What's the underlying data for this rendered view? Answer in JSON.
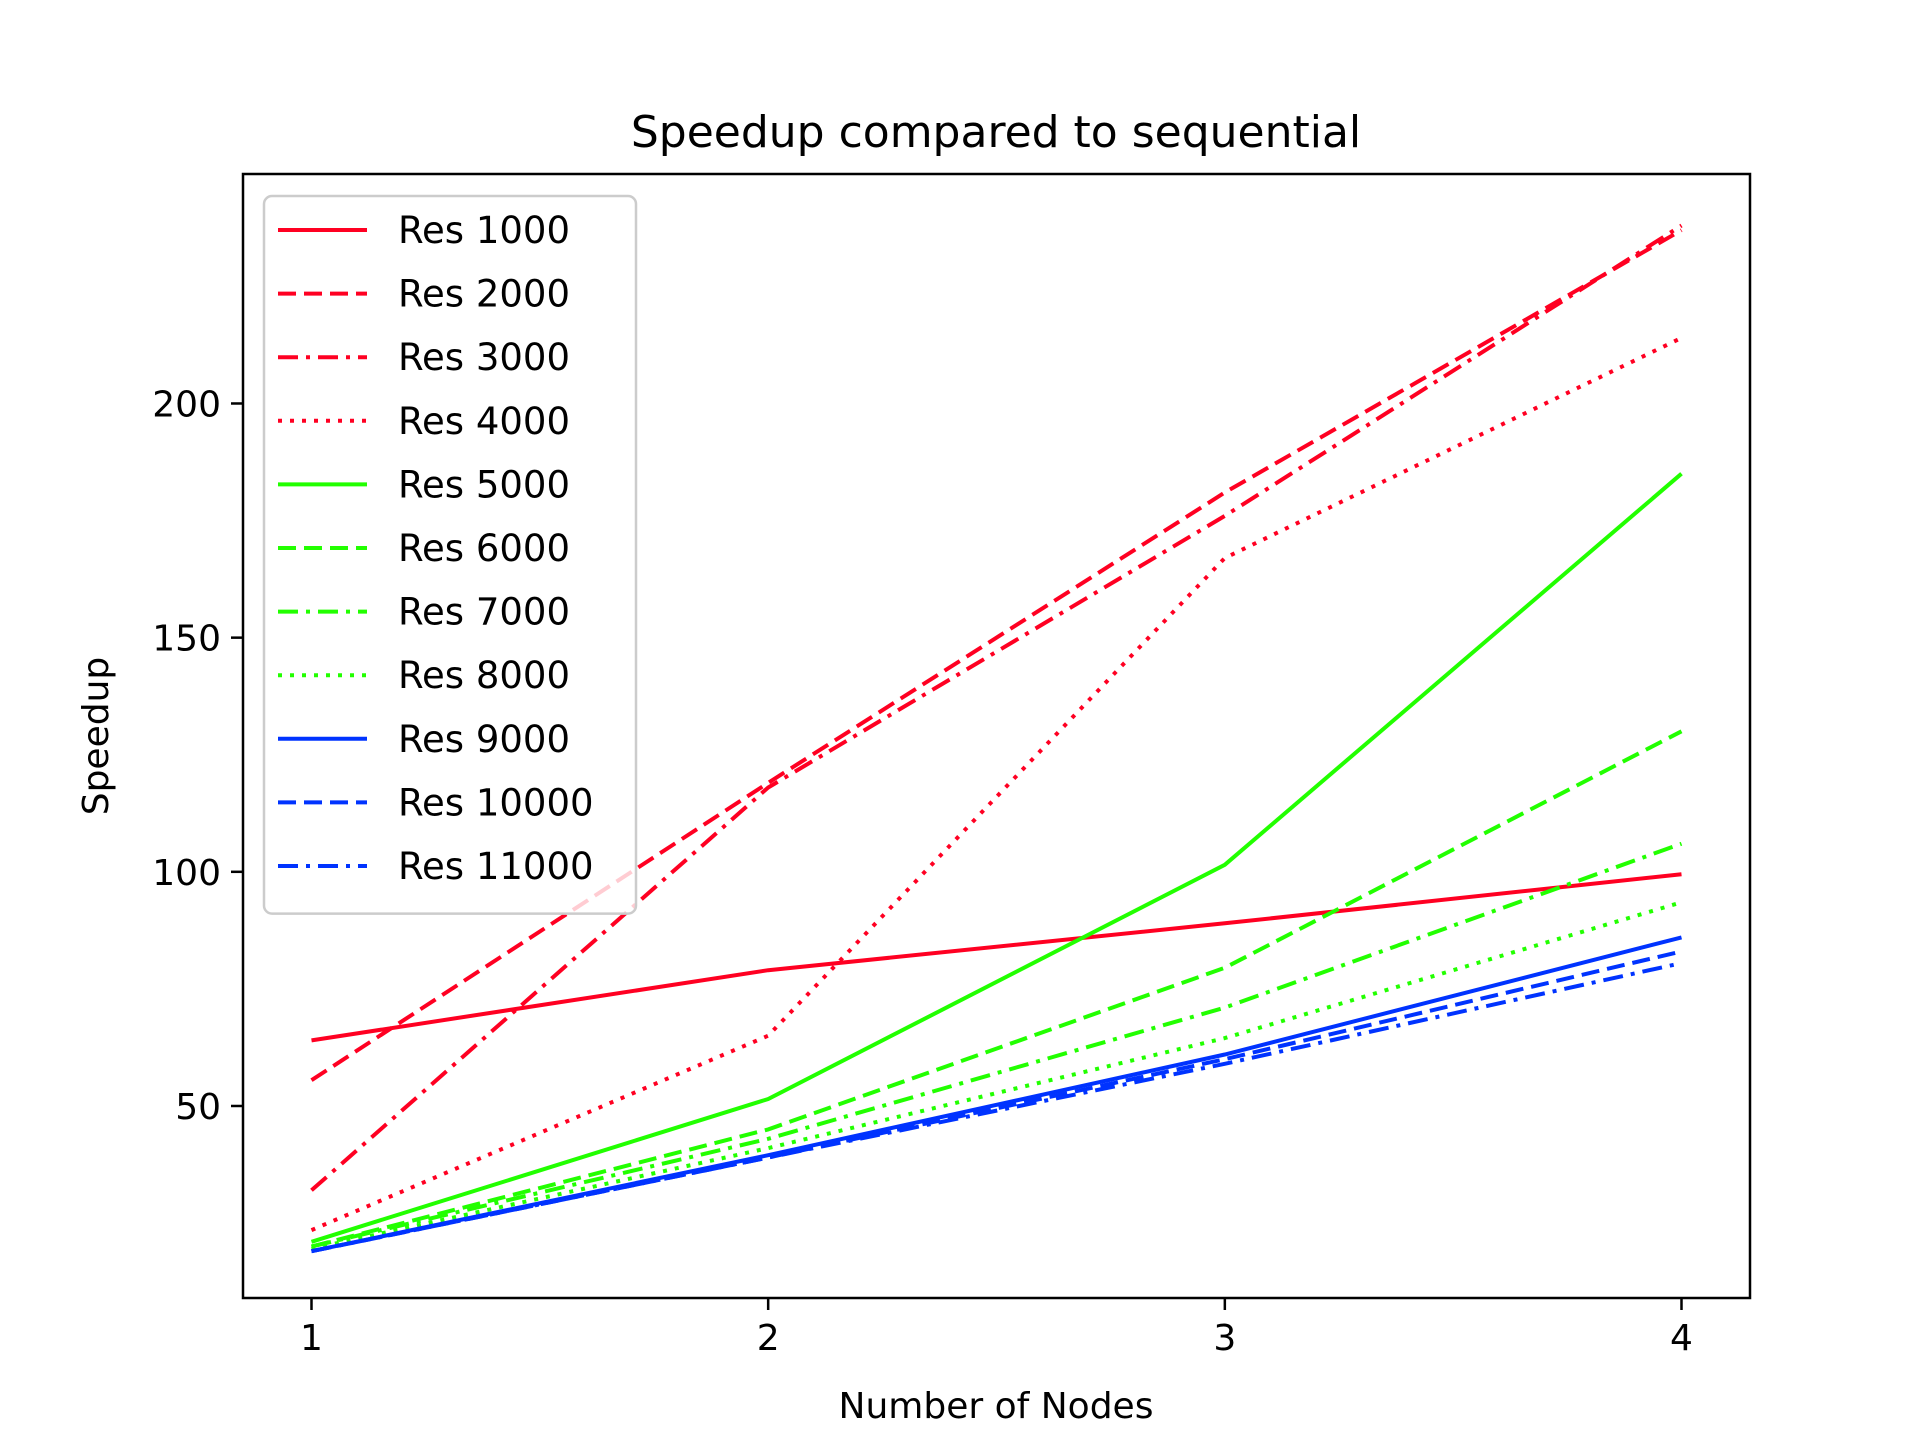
{
  "chart_data": {
    "type": "line",
    "title": "Speedup compared to sequential",
    "xlabel": "Number of Nodes",
    "ylabel": "Speedup",
    "x": [
      1,
      2,
      3,
      4
    ],
    "xticks": [
      1,
      2,
      3,
      4
    ],
    "yticks": [
      50,
      100,
      150,
      200
    ],
    "xlim": [
      0.85,
      4.15
    ],
    "ylim": [
      9,
      249
    ],
    "grid": false,
    "legend_position": "upper-left",
    "series": [
      {
        "name": "Res 1000",
        "color": "#ff0022",
        "style": "solid",
        "values": [
          64,
          79,
          89,
          99.5
        ]
      },
      {
        "name": "Res 2000",
        "color": "#ff0022",
        "style": "dashed",
        "values": [
          55.5,
          119,
          181,
          237
        ]
      },
      {
        "name": "Res 3000",
        "color": "#ff0022",
        "style": "dashdot",
        "values": [
          32,
          118,
          176,
          238
        ]
      },
      {
        "name": "Res 4000",
        "color": "#ff0022",
        "style": "dotted",
        "values": [
          23.5,
          65,
          167,
          214
        ]
      },
      {
        "name": "Res 5000",
        "color": "#22ff00",
        "style": "solid",
        "values": [
          21,
          51.5,
          101.5,
          185
        ]
      },
      {
        "name": "Res 6000",
        "color": "#22ff00",
        "style": "dashed",
        "values": [
          20,
          45,
          79.5,
          130
        ]
      },
      {
        "name": "Res 7000",
        "color": "#22ff00",
        "style": "dashdot",
        "values": [
          20,
          43,
          71,
          106
        ]
      },
      {
        "name": "Res 8000",
        "color": "#22ff00",
        "style": "dotted",
        "values": [
          19.5,
          41,
          64.5,
          93.5
        ]
      },
      {
        "name": "Res 9000",
        "color": "#0033ff",
        "style": "solid",
        "values": [
          19,
          39.5,
          61,
          86
        ]
      },
      {
        "name": "Res 10000",
        "color": "#0033ff",
        "style": "dashed",
        "values": [
          19,
          39,
          60,
          83
        ]
      },
      {
        "name": "Res 11000",
        "color": "#0033ff",
        "style": "dashdot",
        "values": [
          19,
          39,
          59,
          80.5
        ]
      }
    ]
  }
}
